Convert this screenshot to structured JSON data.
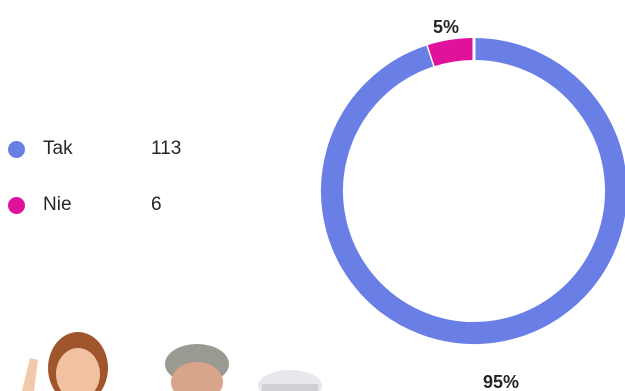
{
  "legend": [
    {
      "label": "Tak",
      "count": "113",
      "color": "#6a7fe6"
    },
    {
      "label": "Nie",
      "count": "6",
      "color": "#e0119a"
    }
  ],
  "chart_data": {
    "type": "pie",
    "donut": true,
    "categories": [
      "Tak",
      "Nie"
    ],
    "values": [
      113,
      6
    ],
    "colors": [
      "#6a7fe6",
      "#e0119a"
    ],
    "data_labels": [
      "95%",
      "5%"
    ]
  },
  "photo": {
    "icon": "people-photo",
    "description_visible": "partial photo of three people at bottom"
  }
}
